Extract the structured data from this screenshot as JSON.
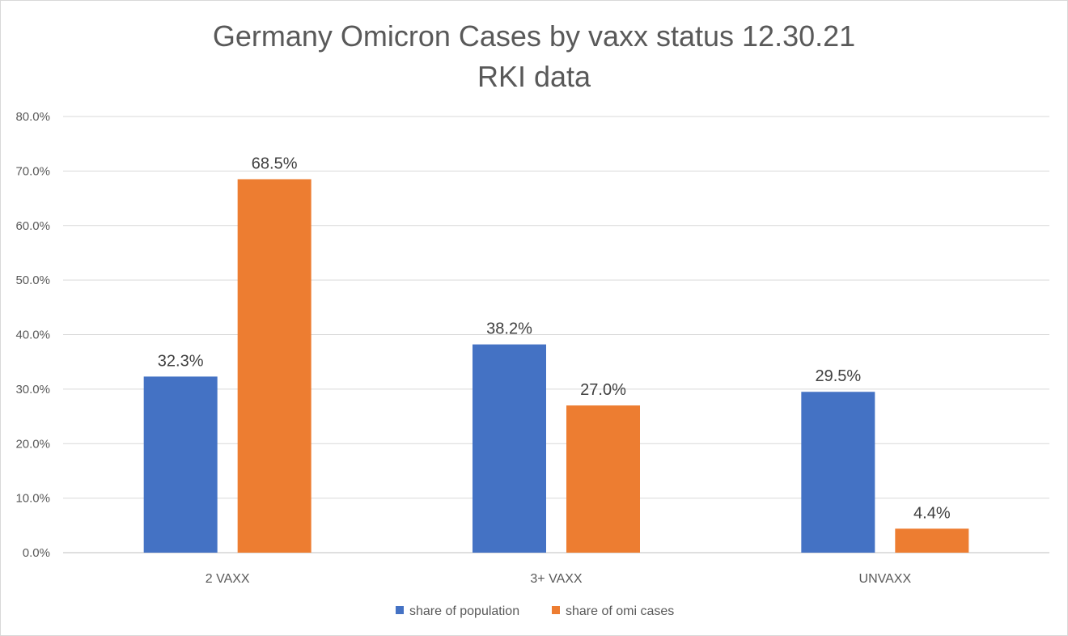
{
  "chart_data": {
    "type": "bar",
    "title": "Germany Omicron Cases by vaxx status 12.30.21",
    "subtitle": "RKI data",
    "categories": [
      "2 VAXX",
      "3+ VAXX",
      "UNVAXX"
    ],
    "series": [
      {
        "name": "share of population",
        "color": "#4472C4",
        "values": [
          32.3,
          38.2,
          29.5
        ],
        "labels": [
          "32.3%",
          "38.2%",
          "29.5%"
        ]
      },
      {
        "name": "share of omi cases",
        "color": "#ED7D31",
        "values": [
          68.5,
          27.0,
          4.4
        ],
        "labels": [
          "68.5%",
          "27.0%",
          "4.4%"
        ]
      }
    ],
    "ylim": [
      0,
      80
    ],
    "ytick_values": [
      0,
      10,
      20,
      30,
      40,
      50,
      60,
      70,
      80
    ],
    "ytick_labels": [
      "0.0%",
      "10.0%",
      "20.0%",
      "30.0%",
      "40.0%",
      "50.0%",
      "60.0%",
      "70.0%",
      "80.0%"
    ],
    "xlabel": "",
    "ylabel": "",
    "grid": true,
    "legend_position": "bottom"
  }
}
